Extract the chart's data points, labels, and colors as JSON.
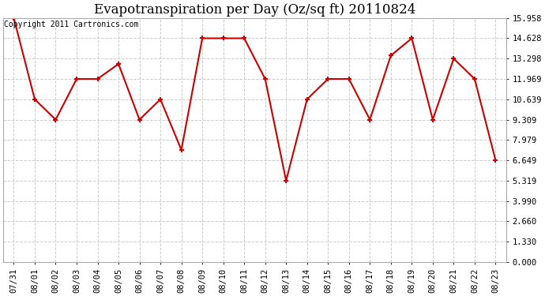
{
  "title": "Evapotranspiration per Day (Oz/sq ft) 20110824",
  "copyright_text": "Copyright 2011 Cartronics.com",
  "x_labels": [
    "07/31",
    "08/01",
    "08/02",
    "08/03",
    "08/04",
    "08/05",
    "08/06",
    "08/07",
    "08/08",
    "08/09",
    "08/10",
    "08/11",
    "08/12",
    "08/13",
    "08/14",
    "08/15",
    "08/16",
    "08/17",
    "08/18",
    "08/19",
    "08/20",
    "08/21",
    "08/22",
    "08/23"
  ],
  "y_values": [
    15.958,
    10.639,
    9.309,
    11.969,
    11.969,
    12.95,
    9.309,
    10.639,
    7.33,
    14.628,
    14.628,
    14.628,
    11.969,
    5.319,
    10.639,
    11.969,
    11.969,
    9.309,
    13.5,
    14.628,
    9.309,
    13.298,
    11.969,
    6.649
  ],
  "y_ticks": [
    0.0,
    1.33,
    2.66,
    3.99,
    5.319,
    6.649,
    7.979,
    9.309,
    10.639,
    11.969,
    13.298,
    14.628,
    15.958
  ],
  "line_color": "#cc0000",
  "marker": "+",
  "marker_size": 5,
  "marker_linewidth": 1.5,
  "line_width": 1.5,
  "fig_bg_color": "#ffffff",
  "plot_bg_color": "#ffffff",
  "grid_color": "#cccccc",
  "title_fontsize": 12,
  "copyright_fontsize": 7,
  "tick_fontsize": 7.5,
  "ylim": [
    0.0,
    15.958
  ],
  "figwidth": 6.9,
  "figheight": 3.75,
  "dpi": 100
}
